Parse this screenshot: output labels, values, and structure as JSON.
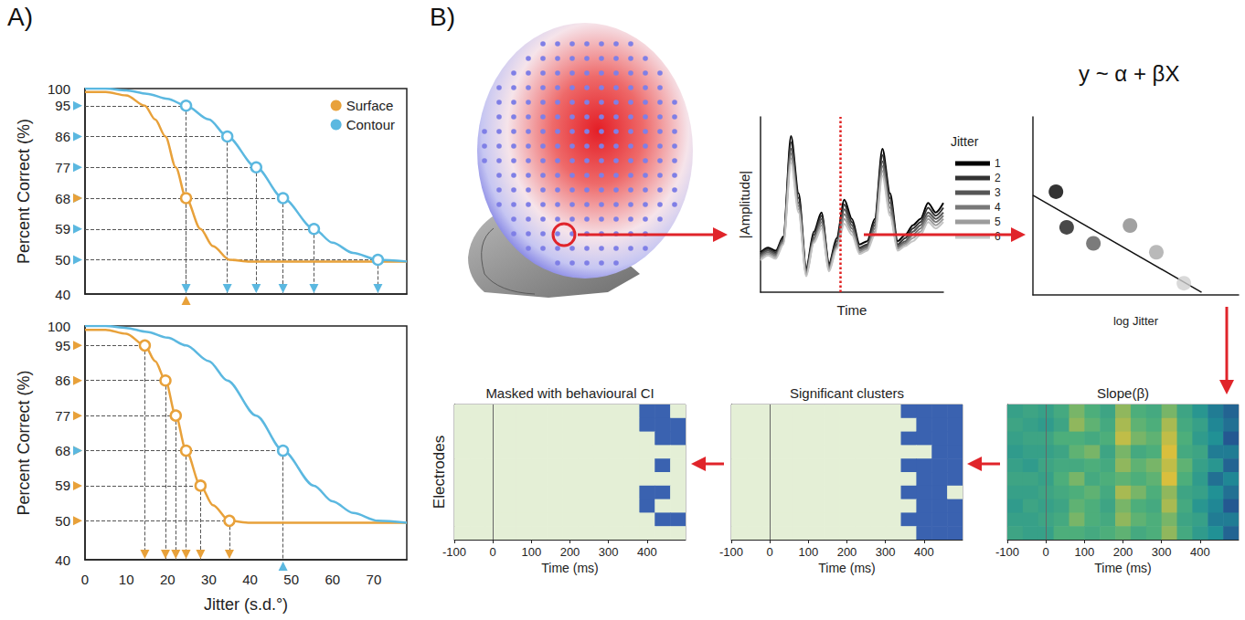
{
  "chart_data": [
    {
      "type": "line",
      "label": "A)",
      "ylabel": "Percent Correct (%)",
      "xlim": [
        0,
        78
      ],
      "ylim": [
        40,
        100
      ],
      "yticks": [
        40,
        50,
        59,
        68,
        77,
        86,
        95,
        100
      ],
      "tick_labels": "y",
      "legend": "upper right",
      "series": [
        {
          "name": "Surface",
          "color": "#e8a13a",
          "x": [
            0,
            5,
            10,
            14.5,
            17,
            19.5,
            22,
            24.5,
            28,
            31,
            35,
            40,
            50,
            60,
            70,
            78
          ],
          "values": [
            99,
            99,
            98,
            95,
            91,
            86,
            77,
            68,
            59,
            54,
            50,
            49.5,
            49.5,
            49.5,
            49.5,
            49.5
          ]
        },
        {
          "name": "Contour",
          "color": "#5bb8e0",
          "x": [
            0,
            5,
            10,
            15,
            20,
            24.5,
            30,
            34.5,
            41.5,
            48,
            55.5,
            60,
            65,
            71,
            78
          ],
          "values": [
            100,
            100,
            99.5,
            98.5,
            97,
            95,
            91,
            86,
            77,
            68,
            59,
            55,
            52,
            50,
            49.5
          ]
        },
        {
          "name": "Contour",
          "type": "scatter",
          "marker": "open circle",
          "color": "#5bb8e0",
          "x": [
            24.5,
            34.5,
            41.5,
            48,
            55.5,
            71
          ],
          "values": [
            95,
            86,
            77,
            68,
            59,
            50
          ]
        },
        {
          "name": "Surface",
          "type": "scatter",
          "marker": "open circle",
          "color": "#e8a13a",
          "x": [
            24.5
          ],
          "values": [
            68
          ]
        }
      ]
    },
    {
      "type": "line",
      "xlabel": "Jitter (s.d.°)",
      "ylabel": "Percent Correct (%)",
      "xlim": [
        0,
        78
      ],
      "xticks": [
        0,
        10,
        20,
        30,
        40,
        50,
        60,
        70
      ],
      "ylim": [
        40,
        100
      ],
      "yticks": [
        40,
        50,
        59,
        68,
        77,
        86,
        95,
        100
      ],
      "series": [
        {
          "name": "Surface",
          "color": "#e8a13a",
          "x": [
            0,
            5,
            10,
            14.5,
            17,
            19.5,
            22,
            24.5,
            28,
            31,
            35,
            40,
            50,
            60,
            70,
            78
          ],
          "values": [
            99,
            99,
            98,
            95,
            91,
            86,
            77,
            68,
            59,
            54,
            50,
            49.5,
            49.5,
            49.5,
            49.5,
            49.5
          ]
        },
        {
          "name": "Contour",
          "color": "#5bb8e0",
          "x": [
            0,
            5,
            10,
            15,
            20,
            24.5,
            30,
            34.5,
            41.5,
            48,
            55.5,
            60,
            65,
            71,
            78
          ],
          "values": [
            100,
            100,
            99.5,
            98.5,
            97,
            95,
            91,
            86,
            77,
            68,
            59,
            55,
            52,
            50,
            49.5
          ]
        },
        {
          "name": "Surface",
          "type": "scatter",
          "marker": "open circle",
          "color": "#e8a13a",
          "x": [
            14.5,
            19.5,
            22,
            24.5,
            28,
            35
          ],
          "values": [
            95,
            86,
            77,
            68,
            59,
            50
          ]
        },
        {
          "name": "Contour",
          "type": "scatter",
          "marker": "open circle",
          "color": "#5bb8e0",
          "x": [
            48
          ],
          "values": [
            68
          ]
        }
      ]
    },
    {
      "type": "line",
      "label": "B)",
      "xlabel": "Time",
      "ylabel": "|Amplitude|",
      "xlim": [
        0,
        24
      ],
      "ylim": [
        0,
        11
      ],
      "tick_labels": false,
      "legend": "right",
      "legend_title": "Jitter",
      "highlight_x": 10.5,
      "x": [
        0,
        1,
        2,
        3,
        4,
        5,
        6,
        7,
        8,
        9,
        10,
        11,
        12,
        13,
        14,
        15,
        16,
        17,
        18,
        19,
        20,
        21,
        22,
        23,
        24
      ],
      "series": [
        {
          "name": "1",
          "color": "#000000",
          "values": [
            2.5,
            2.8,
            2.6,
            3.5,
            9.8,
            6.2,
            1.5,
            3.8,
            5.0,
            1.8,
            3.4,
            5.8,
            4.6,
            3.0,
            3.2,
            4.6,
            9.0,
            6.2,
            3.2,
            3.6,
            4.2,
            4.6,
            5.6,
            5.0,
            5.6
          ]
        },
        {
          "name": "2",
          "color": "#333333",
          "values": [
            2.4,
            2.7,
            2.5,
            3.4,
            9.4,
            5.9,
            1.4,
            3.6,
            4.8,
            1.7,
            3.2,
            5.5,
            4.4,
            2.8,
            3.0,
            4.4,
            8.6,
            5.9,
            3.0,
            3.4,
            4.0,
            4.4,
            5.3,
            4.8,
            5.3
          ]
        },
        {
          "name": "3",
          "color": "#555555",
          "values": [
            2.3,
            2.6,
            2.4,
            3.3,
            9.0,
            5.6,
            1.3,
            3.4,
            4.6,
            1.6,
            3.0,
            5.2,
            4.2,
            2.7,
            2.9,
            4.2,
            8.2,
            5.6,
            2.9,
            3.2,
            3.8,
            4.2,
            5.0,
            4.6,
            5.0
          ]
        },
        {
          "name": "4",
          "color": "#787878",
          "values": [
            2.2,
            2.5,
            2.3,
            3.2,
            8.7,
            5.4,
            1.2,
            3.3,
            4.4,
            1.5,
            2.9,
            4.9,
            4.0,
            2.6,
            2.8,
            4.0,
            7.9,
            5.3,
            2.8,
            3.1,
            3.6,
            4.0,
            4.8,
            4.4,
            4.8
          ]
        },
        {
          "name": "5",
          "color": "#9c9c9c",
          "values": [
            2.1,
            2.4,
            2.2,
            3.1,
            8.4,
            5.2,
            1.1,
            3.2,
            4.2,
            1.4,
            2.8,
            4.6,
            3.8,
            2.5,
            2.7,
            3.8,
            7.6,
            5.0,
            2.7,
            3.0,
            3.4,
            3.8,
            4.6,
            4.2,
            4.6
          ]
        },
        {
          "name": "6",
          "color": "#c4c4c4",
          "values": [
            2.0,
            2.3,
            2.1,
            3.0,
            8.1,
            5.0,
            1.0,
            3.1,
            4.0,
            1.3,
            2.7,
            4.3,
            3.6,
            2.4,
            2.6,
            3.6,
            7.3,
            4.8,
            2.6,
            2.9,
            3.2,
            3.6,
            4.4,
            4.0,
            4.4
          ]
        }
      ]
    },
    {
      "type": "scatter",
      "annotation": "y ~ α + βX",
      "xlabel": "log Jitter",
      "xlim": [
        0,
        5
      ],
      "ylim": [
        0,
        10
      ],
      "tick_labels": false,
      "x": [
        0.56,
        0.82,
        1.47,
        2.36,
        3.0,
        3.67
      ],
      "values": [
        5.8,
        3.8,
        2.9,
        3.9,
        2.4,
        0.66
      ],
      "colors": [
        "#000000",
        "#1a1a1a",
        "#5a5a5a",
        "#8a8a8a",
        "#a8a8a8",
        "#cfcfcf"
      ],
      "fit": {
        "x": [
          0,
          4.1
        ],
        "values": [
          5.6,
          0.15
        ]
      }
    },
    {
      "type": "heatmap",
      "title": "Masked with behavioural CI",
      "xlabel": "Time (ms)",
      "ylabel": "Electrodes",
      "xlim": [
        -100,
        500
      ],
      "xticks": [
        -100,
        0,
        100,
        200,
        300,
        400
      ],
      "ylim": [
        0,
        10
      ],
      "tick_labels": "x",
      "vline": 0,
      "clim": [
        0,
        1
      ],
      "colormap": [
        "#e4efd6",
        "#3a62b0"
      ],
      "bins": [
        -100,
        -60,
        -20,
        20,
        60,
        100,
        140,
        180,
        220,
        260,
        300,
        340,
        380,
        420,
        460,
        500
      ],
      "cells": [
        [
          0,
          0,
          0,
          0,
          0,
          0,
          0,
          0,
          0,
          0,
          0,
          0,
          1,
          1,
          0
        ],
        [
          0,
          0,
          0,
          0,
          0,
          0,
          0,
          0,
          0,
          0,
          0,
          0,
          1,
          1,
          1
        ],
        [
          0,
          0,
          0,
          0,
          0,
          0,
          0,
          0,
          0,
          0,
          0,
          0,
          0,
          1,
          1
        ],
        [
          0,
          0,
          0,
          0,
          0,
          0,
          0,
          0,
          0,
          0,
          0,
          0,
          0,
          0,
          0
        ],
        [
          0,
          0,
          0,
          0,
          0,
          0,
          0,
          0,
          0,
          0,
          0,
          0,
          0,
          1,
          0
        ],
        [
          0,
          0,
          0,
          0,
          0,
          0,
          0,
          0,
          0,
          0,
          0,
          0,
          0,
          0,
          0
        ],
        [
          0,
          0,
          0,
          0,
          0,
          0,
          0,
          0,
          0,
          0,
          0,
          0,
          1,
          1,
          0
        ],
        [
          0,
          0,
          0,
          0,
          0,
          0,
          0,
          0,
          0,
          0,
          0,
          0,
          1,
          0,
          0
        ],
        [
          0,
          0,
          0,
          0,
          0,
          0,
          0,
          0,
          0,
          0,
          0,
          0,
          0,
          1,
          1
        ],
        [
          0,
          0,
          0,
          0,
          0,
          0,
          0,
          0,
          0,
          0,
          0,
          0,
          0,
          0,
          0
        ]
      ]
    },
    {
      "type": "heatmap",
      "title": "Significant clusters",
      "xlabel": "Time (ms)",
      "xlim": [
        -100,
        500
      ],
      "xticks": [
        -100,
        0,
        100,
        200,
        300,
        400
      ],
      "ylim": [
        0,
        10
      ],
      "tick_labels": "x",
      "vline": 0,
      "clim": [
        0,
        1
      ],
      "colormap": [
        "#e4efd6",
        "#3a62b0"
      ],
      "bins": [
        -100,
        -60,
        -20,
        20,
        60,
        100,
        140,
        180,
        220,
        260,
        300,
        340,
        380,
        420,
        460,
        500
      ],
      "cells": [
        [
          0,
          0,
          0,
          0,
          0,
          0,
          0,
          0,
          0,
          0,
          0,
          1,
          1,
          1,
          1
        ],
        [
          0,
          0,
          0,
          0,
          0,
          0,
          0,
          0,
          0,
          0,
          0,
          0,
          1,
          1,
          1
        ],
        [
          0,
          0,
          0,
          0,
          0,
          0,
          0,
          0,
          0,
          0,
          0,
          1,
          1,
          1,
          1
        ],
        [
          0,
          0,
          0,
          0,
          0,
          0,
          0,
          0,
          0,
          0,
          0,
          0,
          0,
          1,
          1
        ],
        [
          0,
          0,
          0,
          0,
          0,
          0,
          0,
          0,
          0,
          0,
          0,
          1,
          1,
          1,
          1
        ],
        [
          0,
          0,
          0,
          0,
          0,
          0,
          0,
          0,
          0,
          0,
          0,
          0,
          1,
          1,
          1
        ],
        [
          0,
          0,
          0,
          0,
          0,
          0,
          0,
          0,
          0,
          0,
          0,
          1,
          1,
          1,
          0
        ],
        [
          0,
          0,
          0,
          0,
          0,
          0,
          0,
          0,
          0,
          0,
          0,
          0,
          1,
          1,
          1
        ],
        [
          0,
          0,
          0,
          0,
          0,
          0,
          0,
          0,
          0,
          0,
          0,
          1,
          1,
          1,
          1
        ],
        [
          0,
          0,
          0,
          0,
          0,
          0,
          0,
          0,
          0,
          0,
          0,
          0,
          1,
          1,
          1
        ]
      ]
    },
    {
      "type": "heatmap",
      "title": "Slope(β)",
      "xlabel": "Time (ms)",
      "xlim": [
        -100,
        500
      ],
      "xticks": [
        -100,
        0,
        100,
        200,
        300,
        400
      ],
      "ylim": [
        0,
        10
      ],
      "tick_labels": "x",
      "vline": 0,
      "clim": [
        -1,
        1
      ],
      "colormap": [
        "#26418f",
        "#1f8f96",
        "#4fb07a",
        "#f1c232"
      ],
      "bins": [
        -100,
        -60,
        -20,
        20,
        60,
        100,
        140,
        180,
        220,
        260,
        300,
        340,
        380,
        420,
        460,
        500
      ],
      "cells": [
        [
          0,
          0.1,
          0,
          0.2,
          0.5,
          0.3,
          0.1,
          0.6,
          0.3,
          0.2,
          0.5,
          0.1,
          -0.2,
          -0.5,
          -0.7
        ],
        [
          0.1,
          0,
          -0.1,
          0.1,
          0.6,
          0.4,
          0.2,
          0.7,
          0.4,
          0.3,
          0.7,
          0.2,
          0,
          -0.4,
          -0.6
        ],
        [
          0,
          0.1,
          0.1,
          0.3,
          0.3,
          0.2,
          0.3,
          0.8,
          0.5,
          0.4,
          0.8,
          0.3,
          -0.1,
          -0.3,
          -0.8
        ],
        [
          -0.1,
          0,
          0,
          0.1,
          0.4,
          0.5,
          0.1,
          0.5,
          0.2,
          0.3,
          0.9,
          0.2,
          0.1,
          -0.5,
          -0.5
        ],
        [
          0,
          -0.1,
          0.1,
          0.2,
          0.2,
          0.3,
          0.2,
          0.6,
          0.4,
          0.5,
          0.8,
          0.4,
          0,
          -0.2,
          -0.7
        ],
        [
          0.1,
          0.1,
          0,
          0.3,
          0.5,
          0.2,
          0.3,
          0.4,
          0.3,
          0.4,
          0.9,
          0.3,
          -0.1,
          -0.6,
          -0.4
        ],
        [
          0,
          0,
          0.1,
          0.2,
          0.3,
          0.4,
          0.2,
          0.7,
          0.5,
          0.3,
          0.6,
          0.1,
          0,
          -0.3,
          -0.6
        ],
        [
          -0.1,
          0.1,
          0,
          0.1,
          0.4,
          0.3,
          0.1,
          0.5,
          0.3,
          0.2,
          0.7,
          0.2,
          -0.2,
          -0.4,
          -0.8
        ],
        [
          0,
          0,
          0.1,
          0.2,
          0.5,
          0.3,
          0.2,
          0.6,
          0.4,
          0.3,
          0.5,
          0.1,
          0,
          -0.5,
          -0.5
        ],
        [
          0.1,
          0,
          0,
          0.3,
          0.3,
          0.2,
          0.3,
          0.4,
          0.2,
          0.3,
          0.6,
          0.2,
          -0.1,
          -0.3,
          -0.7
        ]
      ]
    }
  ]
}
